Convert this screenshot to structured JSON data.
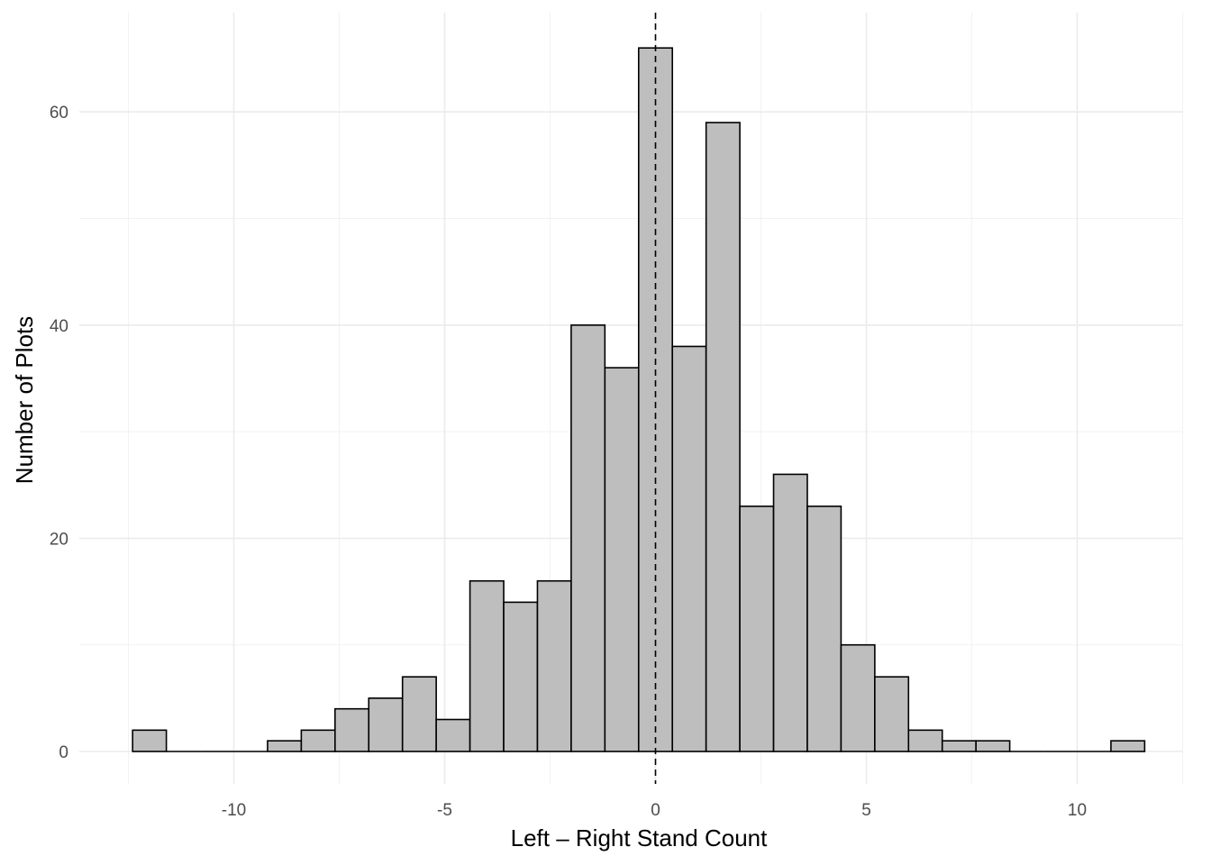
{
  "chart_data": {
    "type": "bar",
    "subtype": "histogram",
    "title": "",
    "xlabel": "Left – Right Stand Count",
    "ylabel": "Number of Plots",
    "bin_width": 0.8,
    "bins": [
      {
        "x_min": -12.4,
        "x_max": -11.6,
        "count": 2
      },
      {
        "x_min": -11.6,
        "x_max": -10.8,
        "count": 0
      },
      {
        "x_min": -10.8,
        "x_max": -10.0,
        "count": 0
      },
      {
        "x_min": -10.0,
        "x_max": -9.2,
        "count": 0
      },
      {
        "x_min": -9.2,
        "x_max": -8.4,
        "count": 1
      },
      {
        "x_min": -8.4,
        "x_max": -7.6,
        "count": 2
      },
      {
        "x_min": -7.6,
        "x_max": -6.8,
        "count": 4
      },
      {
        "x_min": -6.8,
        "x_max": -6.0,
        "count": 5
      },
      {
        "x_min": -6.0,
        "x_max": -5.2,
        "count": 7
      },
      {
        "x_min": -5.2,
        "x_max": -4.4,
        "count": 3
      },
      {
        "x_min": -4.4,
        "x_max": -3.6,
        "count": 16
      },
      {
        "x_min": -3.6,
        "x_max": -2.8,
        "count": 14
      },
      {
        "x_min": -2.8,
        "x_max": -2.0,
        "count": 16
      },
      {
        "x_min": -2.0,
        "x_max": -1.2,
        "count": 40
      },
      {
        "x_min": -1.2,
        "x_max": -0.4,
        "count": 36
      },
      {
        "x_min": -0.4,
        "x_max": 0.4,
        "count": 66
      },
      {
        "x_min": 0.4,
        "x_max": 1.2,
        "count": 38
      },
      {
        "x_min": 1.2,
        "x_max": 2.0,
        "count": 59
      },
      {
        "x_min": 2.0,
        "x_max": 2.8,
        "count": 23
      },
      {
        "x_min": 2.8,
        "x_max": 3.6,
        "count": 26
      },
      {
        "x_min": 3.6,
        "x_max": 4.4,
        "count": 23
      },
      {
        "x_min": 4.4,
        "x_max": 5.2,
        "count": 10
      },
      {
        "x_min": 5.2,
        "x_max": 6.0,
        "count": 7
      },
      {
        "x_min": 6.0,
        "x_max": 6.8,
        "count": 2
      },
      {
        "x_min": 6.8,
        "x_max": 7.6,
        "count": 1
      },
      {
        "x_min": 7.6,
        "x_max": 8.4,
        "count": 1
      },
      {
        "x_min": 8.4,
        "x_max": 9.2,
        "count": 0
      },
      {
        "x_min": 9.2,
        "x_max": 10.0,
        "count": 0
      },
      {
        "x_min": 10.0,
        "x_max": 10.8,
        "count": 0
      },
      {
        "x_min": 10.8,
        "x_max": 11.6,
        "count": 1
      }
    ],
    "xlim": [
      -12.4,
      11.6
    ],
    "ylim": [
      0,
      66
    ],
    "x_ticks": [
      -10,
      -5,
      0,
      5,
      10
    ],
    "x_tick_labels": [
      "-10",
      "-5",
      "0",
      "5",
      "10"
    ],
    "y_ticks": [
      0,
      20,
      40,
      60
    ],
    "y_tick_labels": [
      "0",
      "20",
      "40",
      "60"
    ],
    "reference_line": {
      "x": 0,
      "style": "dashed",
      "color": "#000000"
    },
    "bar_fill": "#bebebe",
    "bar_outline": "#000000",
    "grid": true,
    "legend": "none",
    "theme": "minimal"
  }
}
